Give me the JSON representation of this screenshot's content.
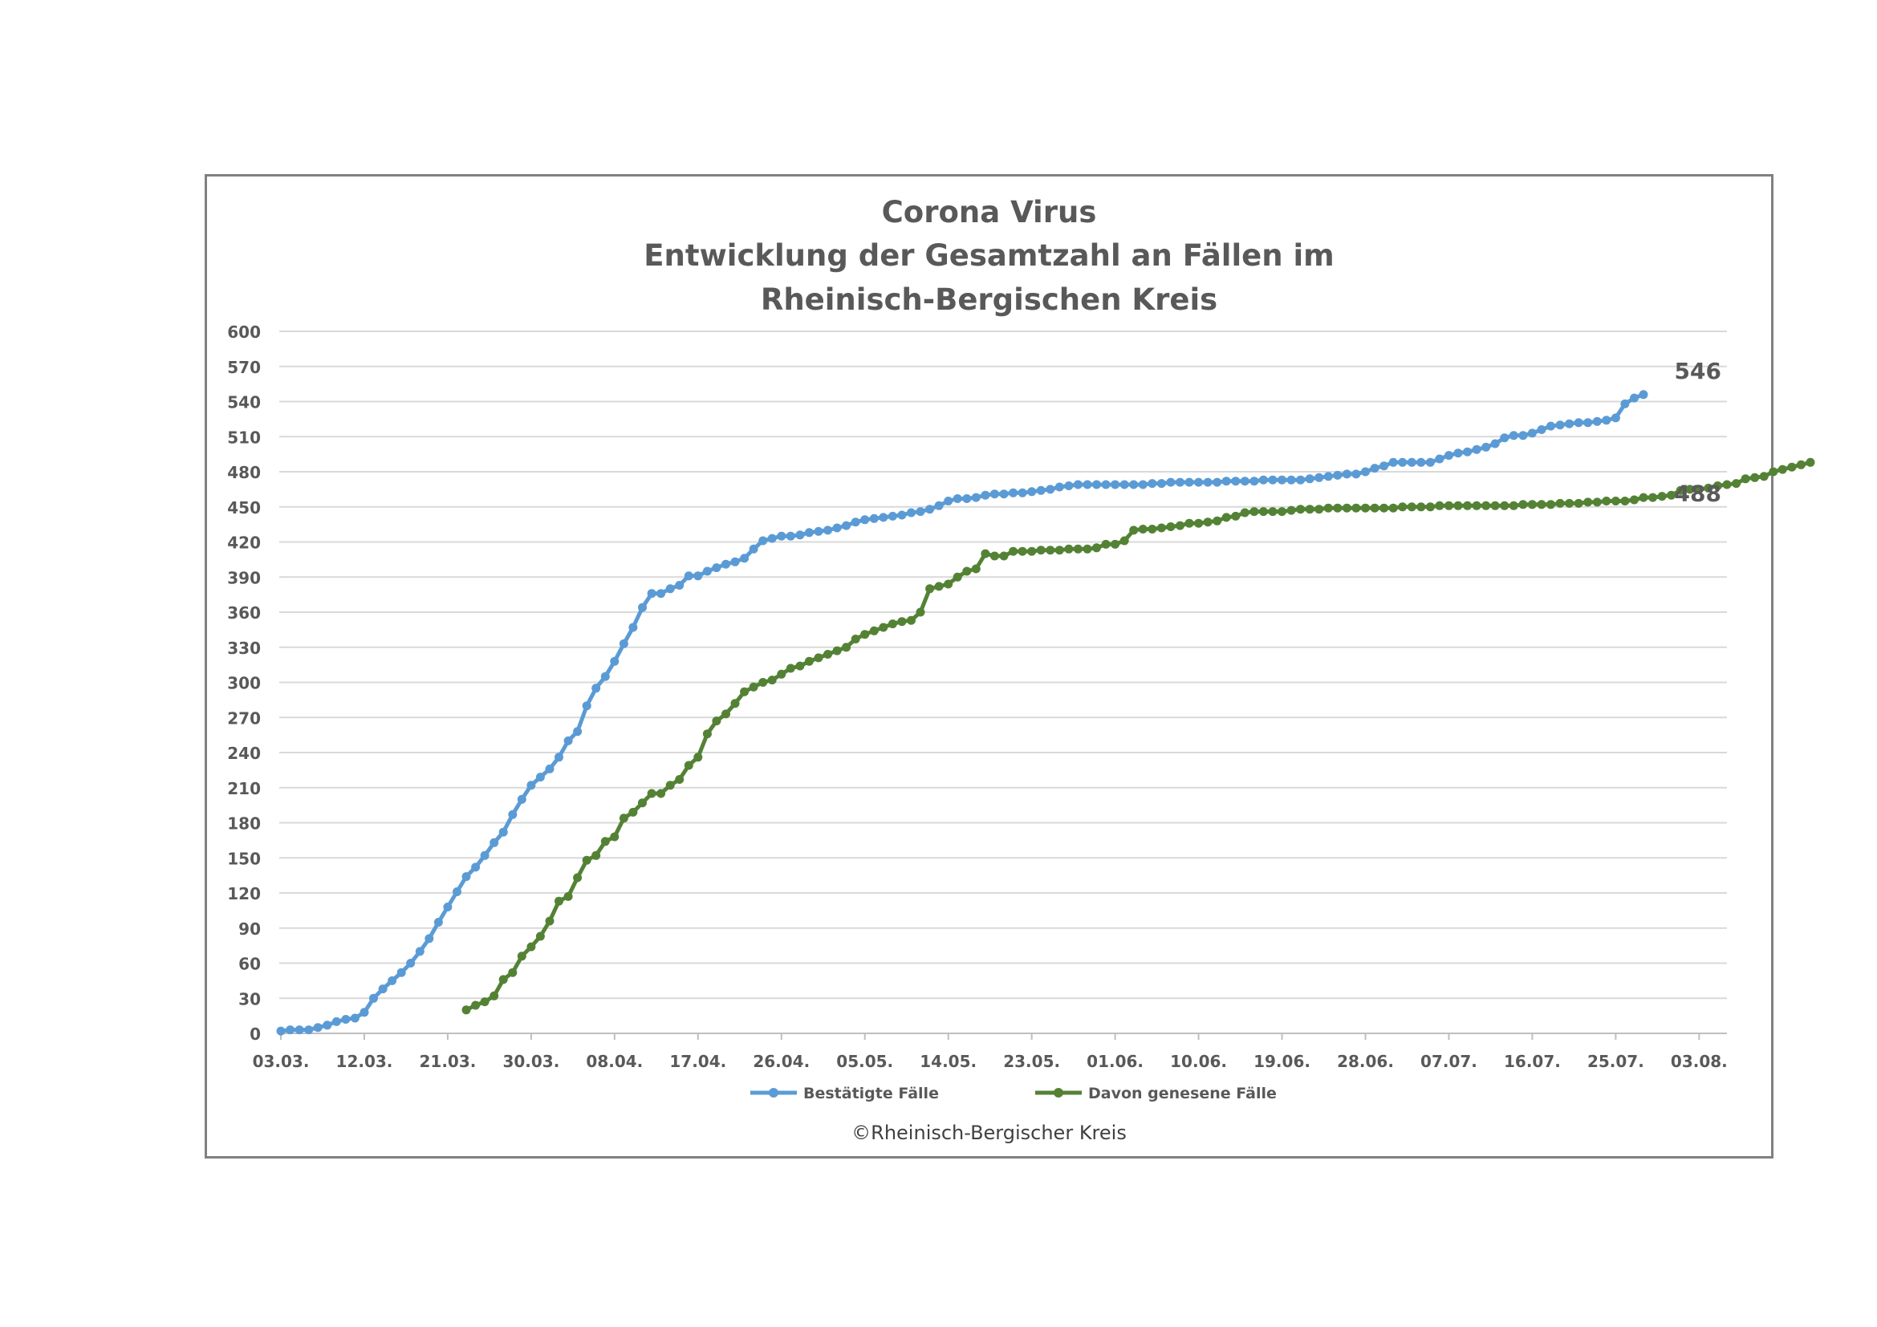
{
  "chart_data": {
    "type": "line",
    "title_lines": [
      "Corona Virus",
      "Entwicklung der Gesamtzahl an Fällen im",
      "Rheinisch-Bergischen Kreis"
    ],
    "xlabel": "",
    "ylabel": "",
    "ylim": [
      0,
      600
    ],
    "yticks": [
      0,
      30,
      60,
      90,
      120,
      150,
      180,
      210,
      240,
      270,
      300,
      330,
      360,
      390,
      420,
      450,
      480,
      510,
      540,
      570,
      600
    ],
    "x_start": "03.03.",
    "x_tick_labels": [
      "03.03.",
      "12.03.",
      "21.03.",
      "30.03.",
      "08.04.",
      "17.04.",
      "26.04.",
      "05.05.",
      "14.05.",
      "23.05.",
      "01.06.",
      "10.06.",
      "19.06.",
      "28.06.",
      "07.07.",
      "16.07.",
      "25.07.",
      "03.08."
    ],
    "x_tick_every_days": 9,
    "grid": true,
    "legend_position": "bottom",
    "series": [
      {
        "name": "Bestätigte Fälle",
        "color": "#5B9BD5",
        "start_index": 0,
        "end_label": "546",
        "values": [
          2,
          3,
          3,
          3,
          5,
          7,
          10,
          12,
          13,
          18,
          30,
          38,
          45,
          52,
          60,
          70,
          81,
          95,
          108,
          121,
          134,
          142,
          152,
          163,
          172,
          187,
          200,
          212,
          219,
          226,
          236,
          250,
          258,
          280,
          295,
          305,
          318,
          333,
          347,
          364,
          376,
          376,
          380,
          383,
          391,
          391,
          395,
          398,
          401,
          403,
          406,
          414,
          421,
          423,
          425,
          425,
          426,
          428,
          429,
          430,
          432,
          434,
          437,
          439,
          440,
          441,
          442,
          443,
          445,
          446,
          448,
          451,
          455,
          457,
          457,
          458,
          460,
          461,
          461,
          462,
          462,
          463,
          464,
          465,
          467,
          468,
          469,
          469,
          469,
          469,
          469,
          469,
          469,
          469,
          470,
          470,
          471,
          471,
          471,
          471,
          471,
          471,
          472,
          472,
          472,
          472,
          473,
          473,
          473,
          473,
          473,
          474,
          475,
          476,
          477,
          478,
          478,
          480,
          483,
          485,
          488,
          488,
          488,
          488,
          488,
          491,
          494,
          496,
          497,
          499,
          501,
          504,
          509,
          511,
          511,
          513,
          516,
          519,
          520,
          521,
          522,
          522,
          523,
          524,
          526,
          538,
          543,
          546
        ]
      },
      {
        "name": "Davon genesene Fälle",
        "color": "#548235",
        "start_index": 20,
        "end_label": "488",
        "values": [
          20,
          24,
          27,
          32,
          46,
          52,
          66,
          74,
          83,
          96,
          113,
          117,
          133,
          148,
          152,
          164,
          168,
          184,
          189,
          197,
          205,
          205,
          212,
          217,
          229,
          236,
          256,
          267,
          273,
          282,
          292,
          296,
          300,
          302,
          307,
          312,
          314,
          318,
          321,
          324,
          327,
          330,
          337,
          341,
          344,
          347,
          350,
          352,
          353,
          360,
          380,
          382,
          384,
          390,
          395,
          397,
          410,
          408,
          408,
          412,
          412,
          412,
          413,
          413,
          413,
          414,
          414,
          414,
          415,
          418,
          418,
          421,
          430,
          431,
          431,
          432,
          433,
          434,
          436,
          436,
          437,
          438,
          441,
          442,
          445,
          446,
          446,
          446,
          446,
          447,
          448,
          448,
          448,
          449,
          449,
          449,
          449,
          449,
          449,
          449,
          449,
          450,
          450,
          450,
          450,
          451,
          451,
          451,
          451,
          451,
          451,
          451,
          451,
          451,
          452,
          452,
          452,
          452,
          453,
          453,
          453,
          454,
          454,
          455,
          455,
          455,
          456,
          458,
          458,
          459,
          460,
          464,
          465,
          465,
          466,
          468,
          469,
          470,
          474,
          475,
          476,
          480,
          482,
          484,
          486,
          488
        ]
      }
    ]
  },
  "copyright": "©Rheinisch-Bergischer Kreis"
}
